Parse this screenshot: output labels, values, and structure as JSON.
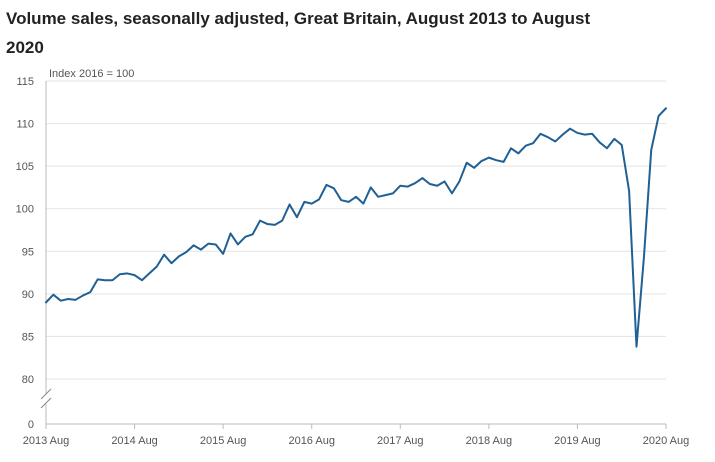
{
  "chart_data": {
    "type": "line",
    "title": "Volume sales, seasonally adjusted, Great Britain, August 2013 to August 2020",
    "unit_label": "Index 2016 = 100",
    "xlabel": "",
    "ylabel": "",
    "y_ticks": [
      "0",
      "80",
      "85",
      "90",
      "95",
      "100",
      "105",
      "110",
      "115"
    ],
    "y_break": true,
    "ylim": [
      80,
      115
    ],
    "x_ticks": [
      "2013 Aug",
      "2014 Aug",
      "2015 Aug",
      "2016 Aug",
      "2017 Aug",
      "2018 Aug",
      "2019 Aug",
      "2020 Aug"
    ],
    "grid": true,
    "line_color": "#206095",
    "series": [
      {
        "x_start": "2013 Aug",
        "frequency": "monthly",
        "values": [
          89.0,
          89.9,
          89.2,
          89.4,
          89.3,
          89.8,
          90.2,
          91.7,
          91.6,
          91.6,
          92.3,
          92.4,
          92.2,
          91.6,
          92.4,
          93.2,
          94.6,
          93.6,
          94.4,
          94.9,
          95.7,
          95.2,
          95.9,
          95.8,
          94.7,
          97.1,
          95.8,
          96.7,
          97.0,
          98.6,
          98.2,
          98.1,
          98.6,
          100.5,
          99.0,
          100.8,
          100.6,
          101.1,
          102.8,
          102.4,
          101.0,
          100.8,
          101.4,
          100.6,
          102.5,
          101.4,
          101.6,
          101.8,
          102.7,
          102.6,
          103.0,
          103.6,
          102.9,
          102.7,
          103.2,
          101.8,
          103.2,
          105.4,
          104.8,
          105.6,
          106.0,
          105.7,
          105.5,
          107.1,
          106.5,
          107.4,
          107.7,
          108.8,
          108.4,
          107.9,
          108.7,
          109.4,
          108.9,
          108.7,
          108.8,
          107.8,
          107.1,
          108.2,
          107.5,
          102.1,
          83.8,
          94.2,
          106.9,
          110.9,
          111.8
        ]
      }
    ]
  }
}
